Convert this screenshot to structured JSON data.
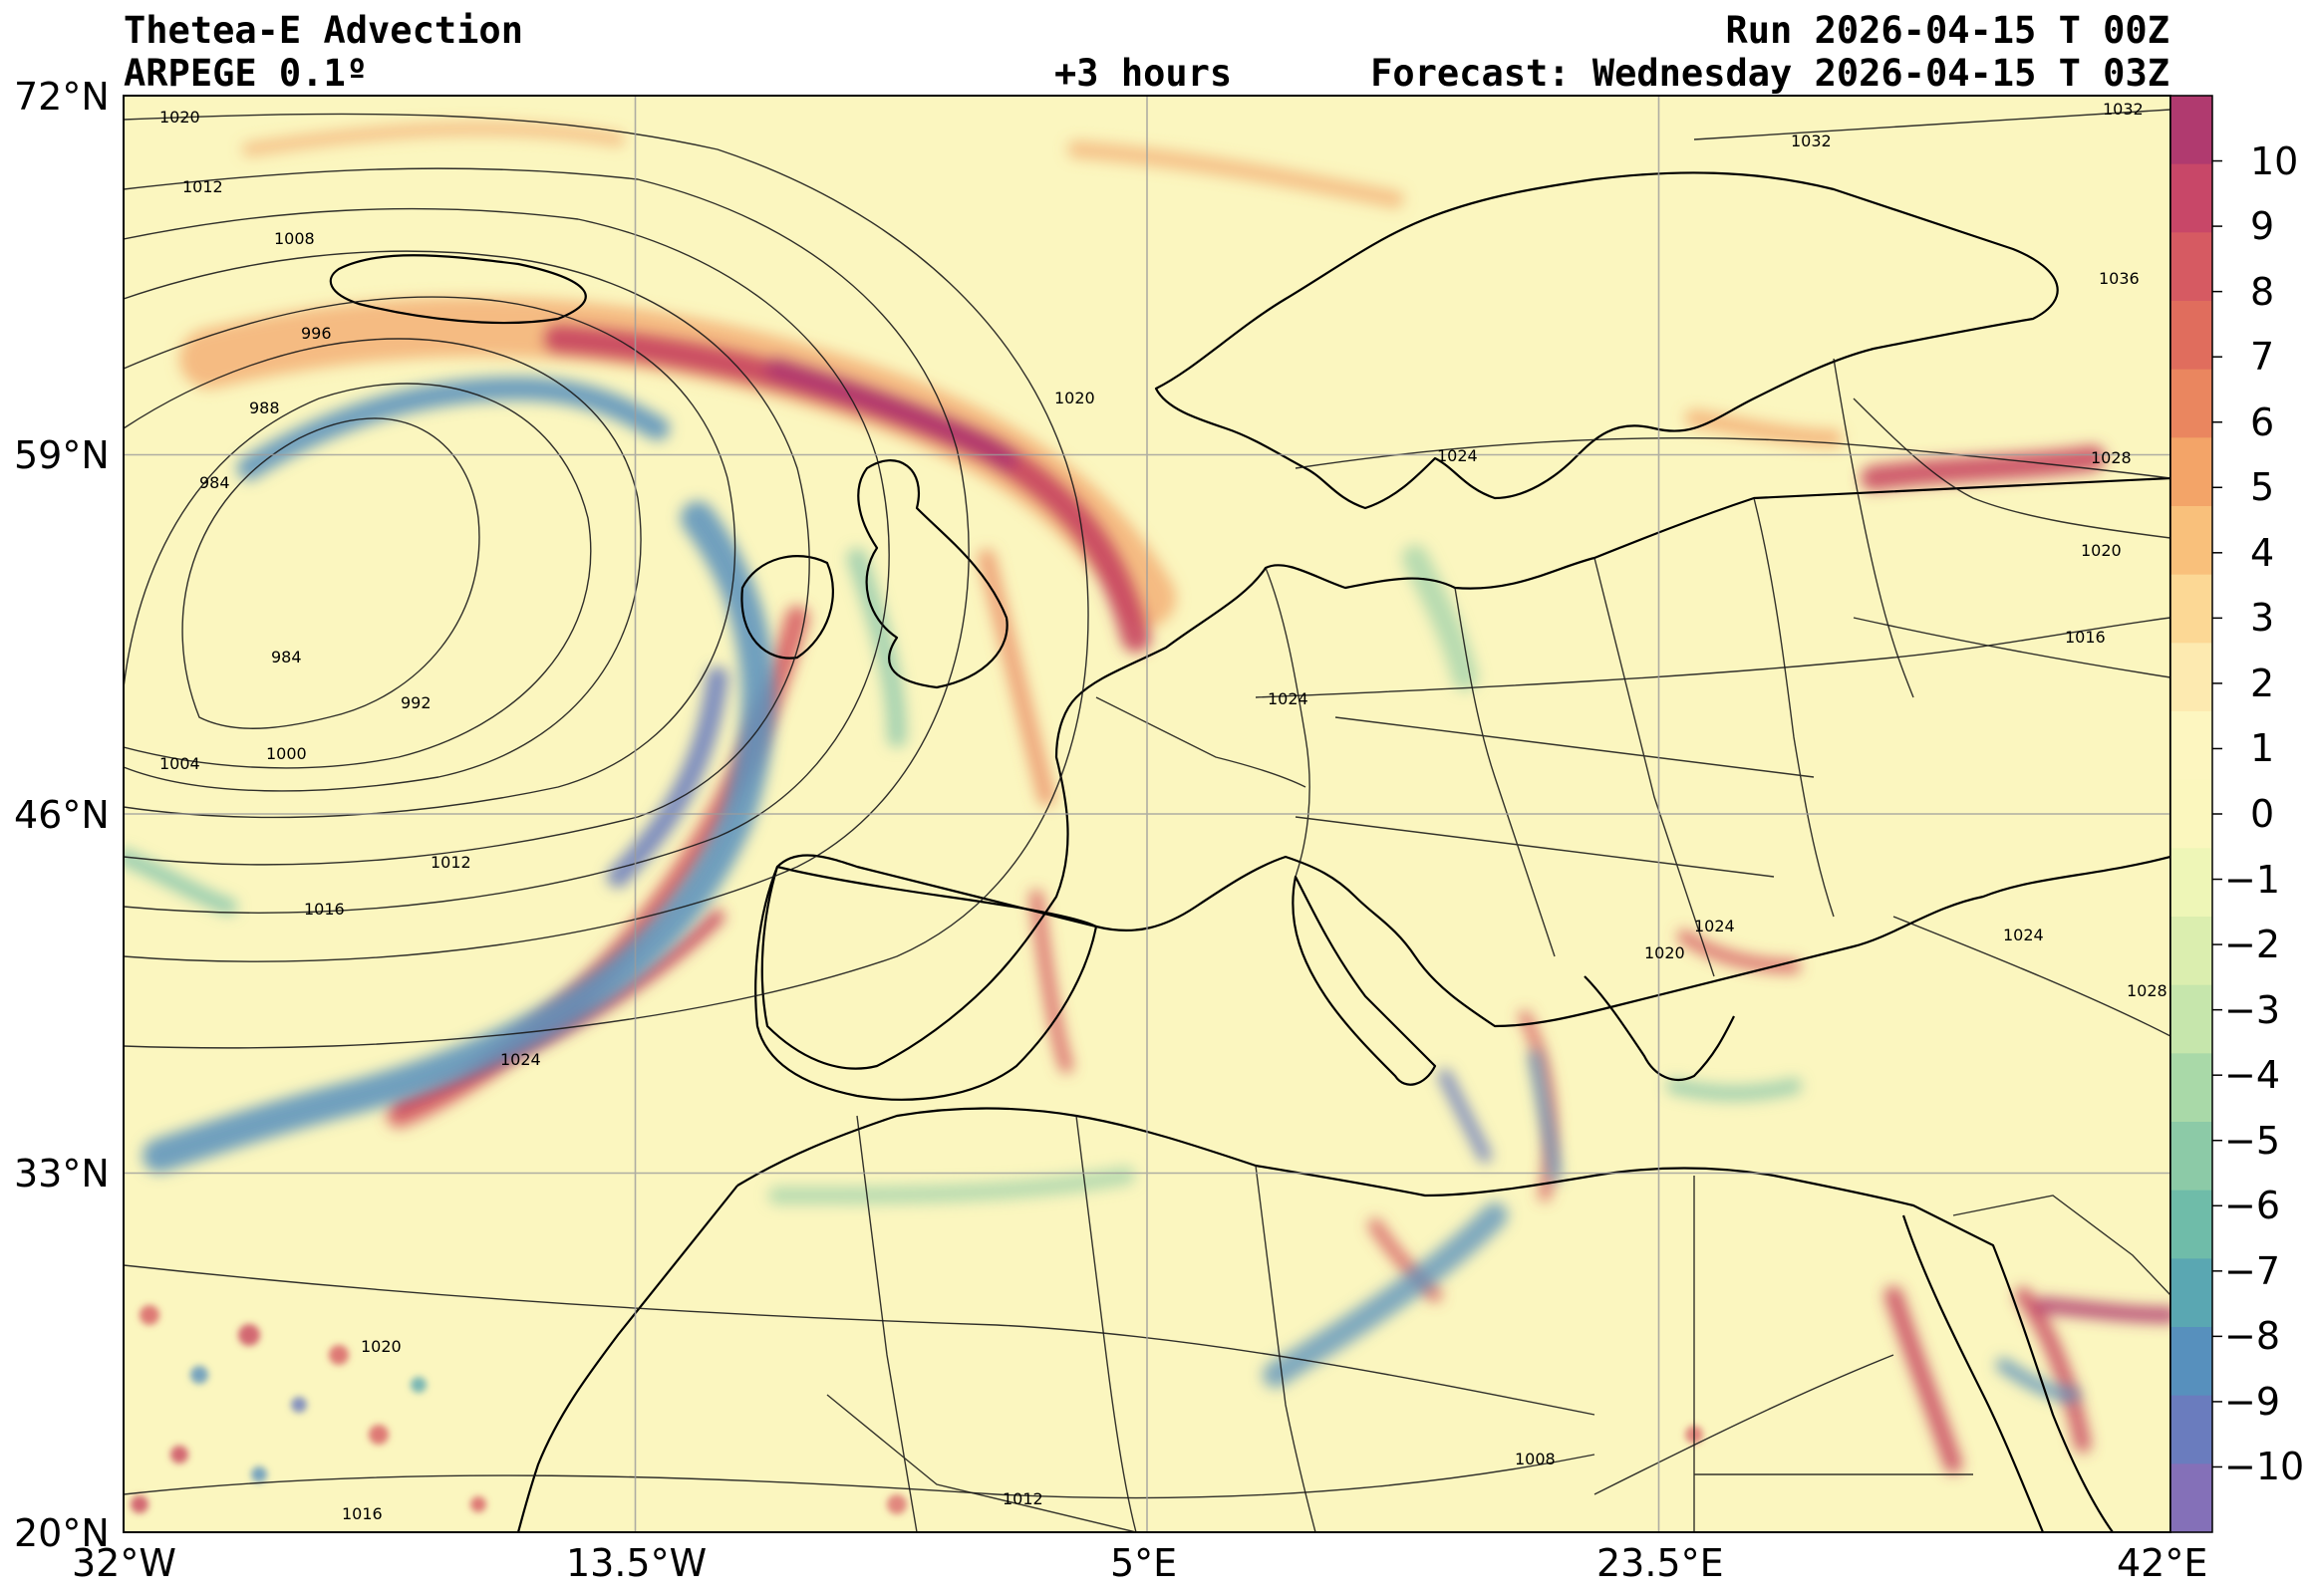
{
  "header": {
    "title": "Thetea-E Advection",
    "model": "ARPEGE 0.1º",
    "lead": "+3 hours",
    "run": "Run 2026-04-15 T 00Z",
    "forecast": "Forecast: Wednesday 2026-04-15 T 03Z"
  },
  "map": {
    "lat_labels": [
      "72°N",
      "59°N",
      "46°N",
      "33°N",
      "20°N"
    ],
    "lon_labels": [
      "32°W",
      "13.5°W",
      "5°E",
      "23.5°E",
      "42°E"
    ],
    "extent": {
      "lon": [
        -32,
        42
      ],
      "lat": [
        20,
        72
      ]
    },
    "isobar_labels": [
      "1020",
      "1012",
      "1008",
      "996",
      "988",
      "984",
      "984",
      "992",
      "1000",
      "1004",
      "1012",
      "1016",
      "1024",
      "1020",
      "1016",
      "1020",
      "1024",
      "1024",
      "1032",
      "1032",
      "1036",
      "1028",
      "1020",
      "1016",
      "1024",
      "1020",
      "1024",
      "1028",
      "1008",
      "1012"
    ]
  },
  "colorbar": {
    "ticks": [
      "10",
      "9",
      "8",
      "7",
      "6",
      "5",
      "4",
      "3",
      "2",
      "1",
      "0",
      "−1",
      "−2",
      "−3",
      "−4",
      "−5",
      "−6",
      "−7",
      "−8",
      "−9",
      "−10"
    ],
    "range": [
      -11,
      11
    ],
    "colors": [
      "#b03a6f",
      "#c84768",
      "#d65a62",
      "#e06d5d",
      "#ea865f",
      "#f3a468",
      "#f9c07b",
      "#fcd895",
      "#fdeab0",
      "#fdf6c0",
      "#fbf7be",
      "#eef6b7",
      "#dbeeaf",
      "#c6e6ac",
      "#a9d9a8",
      "#8ccaa7",
      "#6fbca9",
      "#5aa7b2",
      "#5790bd",
      "#6a7cbe",
      "#8470b8"
    ],
    "positive_color": "#c8455f",
    "negative_color": "#4a87c2",
    "base_color": "#fbf6bf"
  }
}
